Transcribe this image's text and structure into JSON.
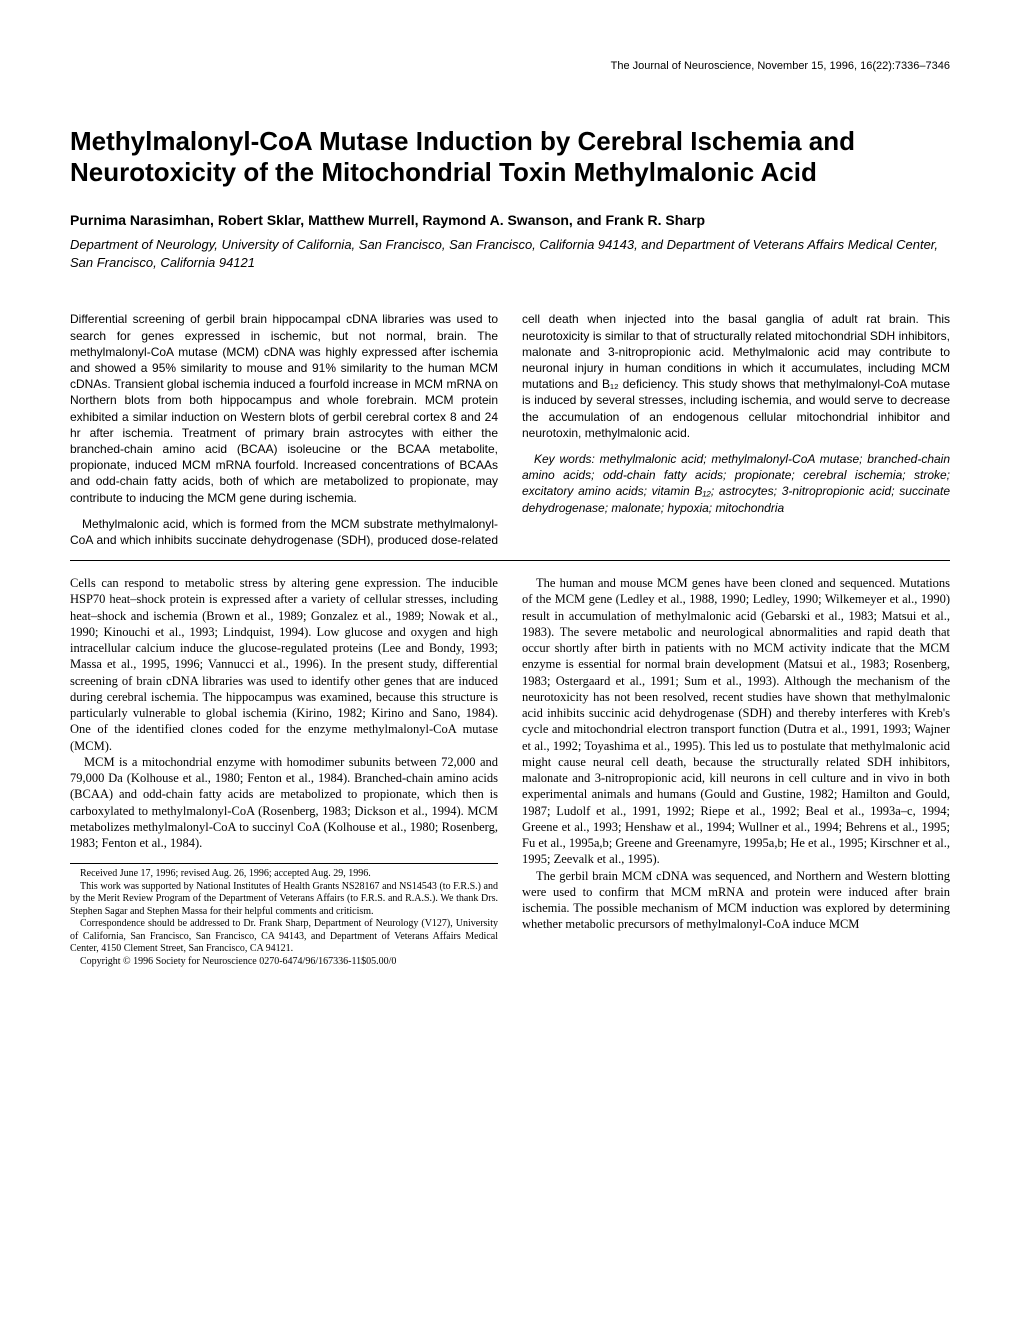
{
  "running_head": "The Journal of Neuroscience, November 15, 1996, 16(22):7336–7346",
  "title": "Methylmalonyl-CoA Mutase Induction by Cerebral Ischemia and Neurotoxicity of the Mitochondrial Toxin Methylmalonic Acid",
  "authors": "Purnima Narasimhan, Robert Sklar, Matthew Murrell, Raymond A. Swanson, and Frank R. Sharp",
  "affiliation": "Department of Neurology, University of California, San Francisco, San Francisco, California 94143, and Department of Veterans Affairs Medical Center, San Francisco, California 94121",
  "abstract": {
    "p1": "Differential screening of gerbil brain hippocampal cDNA libraries was used to search for genes expressed in ischemic, but not normal, brain. The methylmalonyl-CoA mutase (MCM) cDNA was highly expressed after ischemia and showed a 95% similarity to mouse and 91% similarity to the human MCM cDNAs. Transient global ischemia induced a fourfold increase in MCM mRNA on Northern blots from both hippocampus and whole forebrain. MCM protein exhibited a similar induction on Western blots of gerbil cerebral cortex 8 and 24 hr after ischemia. Treatment of primary brain astrocytes with either the branched-chain amino acid (BCAA) isoleucine or the BCAA metabolite, propionate, induced MCM mRNA fourfold. Increased concentrations of BCAAs and odd-chain fatty acids, both of which are metabolized to propionate, may contribute to inducing the MCM gene during ischemia.",
    "p2": "Methylmalonic acid, which is formed from the MCM substrate methylmalonyl-CoA and which inhibits succinate dehydrogenase (SDH), produced dose-related cell death when injected into the basal ganglia of adult rat brain. This neurotoxicity is similar to that of structurally related mitochondrial SDH inhibitors, malonate and 3-nitropropionic acid. Methylmalonic acid may contribute to neuronal injury in human conditions in which it accumulates, including MCM mutations and B₁₂ deficiency. This study shows that methylmalonyl-CoA mutase is induced by several stresses, including ischemia, and would serve to decrease the accumulation of an endogenous cellular mitochondrial inhibitor and neurotoxin, methylmalonic acid.",
    "keywords": "Key words: methylmalonic acid; methylmalonyl-CoA mutase; branched-chain amino acids; odd-chain fatty acids; propionate; cerebral ischemia; stroke; excitatory amino acids; vitamin B₁₂; astrocytes; 3-nitropropionic acid; succinate dehydrogenase; malonate; hypoxia; mitochondria"
  },
  "body": {
    "p1": "Cells can respond to metabolic stress by altering gene expression. The inducible HSP70 heat–shock protein is expressed after a variety of cellular stresses, including heat–shock and ischemia (Brown et al., 1989; Gonzalez et al., 1989; Nowak et al., 1990; Kinouchi et al., 1993; Lindquist, 1994). Low glucose and oxygen and high intracellular calcium induce the glucose-regulated proteins (Lee and Bondy, 1993; Massa et al., 1995, 1996; Vannucci et al., 1996). In the present study, differential screening of brain cDNA libraries was used to identify other genes that are induced during cerebral ischemia. The hippocampus was examined, because this structure is particularly vulnerable to global ischemia (Kirino, 1982; Kirino and Sano, 1984). One of the identified clones coded for the enzyme methylmalonyl-CoA mutase (MCM).",
    "p2": "MCM is a mitochondrial enzyme with homodimer subunits between 72,000 and 79,000 Da (Kolhouse et al., 1980; Fenton et al., 1984). Branched-chain amino acids (BCAA) and odd-chain fatty acids are metabolized to propionate, which then is carboxylated to methylmalonyl-CoA (Rosenberg, 1983; Dickson et al., 1994). MCM metabolizes methylmalonyl-CoA to succinyl CoA (Kolhouse et al., 1980; Rosenberg, 1983; Fenton et al., 1984).",
    "p3": "The human and mouse MCM genes have been cloned and sequenced. Mutations of the MCM gene (Ledley et al., 1988, 1990; Ledley, 1990; Wilkemeyer et al., 1990) result in accumulation of methylmalonic acid (Gebarski et al., 1983; Matsui et al., 1983). The severe metabolic and neurological abnormalities and rapid death that occur shortly after birth in patients with no MCM activity indicate that the MCM enzyme is essential for normal brain development (Matsui et al., 1983; Rosenberg, 1983; Ostergaard et al., 1991; Sum et al., 1993). Although the mechanism of the neurotoxicity has not been resolved, recent studies have shown that methylmalonic acid inhibits succinic acid dehydrogenase (SDH) and thereby interferes with Kreb's cycle and mitochondrial electron transport function (Dutra et al., 1991, 1993; Wajner et al., 1992; Toyashima et al., 1995). This led us to postulate that methylmalonic acid might cause neural cell death, because the structurally related SDH inhibitors, malonate and 3-nitropropionic acid, kill neurons in cell culture and in vivo in both experimental animals and humans (Gould and Gustine, 1982; Hamilton and Gould, 1987; Ludolf et al., 1991, 1992; Riepe et al., 1992; Beal et al., 1993a–c, 1994; Greene et al., 1993; Henshaw et al., 1994; Wullner et al., 1994; Behrens et al., 1995; Fu et al., 1995a,b; Greene and Greenamyre, 1995a,b; He et al., 1995; Kirschner et al., 1995; Zeevalk et al., 1995).",
    "p4": "The gerbil brain MCM cDNA was sequenced, and Northern and Western blotting were used to confirm that MCM mRNA and protein were induced after brain ischemia. The possible mechanism of MCM induction was explored by determining whether metabolic precursors of methylmalonyl-CoA induce MCM"
  },
  "footnotes": {
    "received": "Received June 17, 1996; revised Aug. 26, 1996; accepted Aug. 29, 1996.",
    "support": "This work was supported by National Institutes of Health Grants NS28167 and NS14543 (to F.R.S.) and by the Merit Review Program of the Department of Veterans Affairs (to F.R.S. and R.A.S.). We thank Drs. Stephen Sagar and Stephen Massa for their helpful comments and criticism.",
    "correspondence": "Correspondence should be addressed to Dr. Frank Sharp, Department of Neurology (V127), University of California, San Francisco, San Francisco, CA 94143, and Department of Veterans Affairs Medical Center, 4150 Clement Street, San Francisco, CA 94121.",
    "copyright": "Copyright © 1996 Society for Neuroscience   0270-6474/96/167336-11$05.00/0"
  }
}
